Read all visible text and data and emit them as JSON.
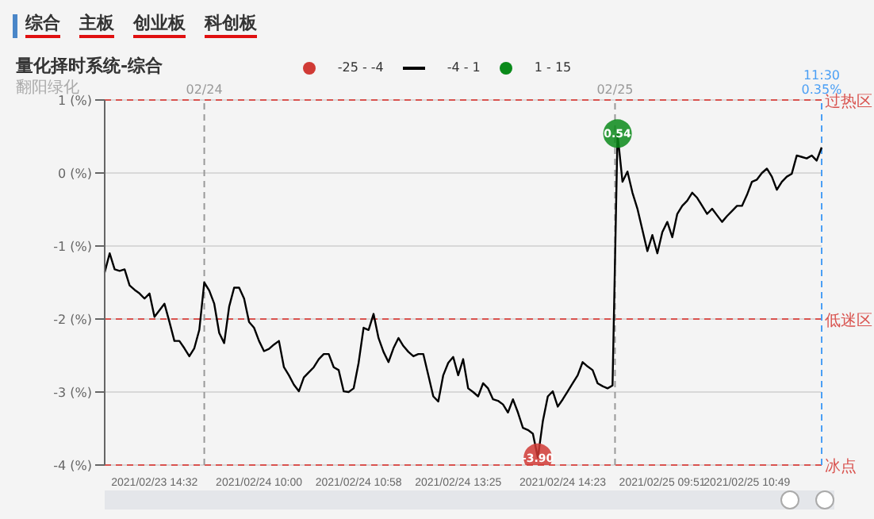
{
  "chart_data": {
    "type": "line",
    "title": "量化择时系统-综合",
    "subtitle": "翻阳绿化",
    "annotations": [
      "综合",
      "主板",
      "创业板",
      "科创板",
      "02/24",
      "02/25",
      "11:30 0.35%"
    ],
    "categories": [
      null,
      null,
      null,
      null,
      null,
      null,
      null,
      null,
      null,
      null,
      "2021/02/23 14:32",
      null,
      null,
      null,
      null,
      null,
      null,
      null,
      null,
      null,
      null,
      null,
      null,
      null,
      null,
      null,
      null,
      null,
      null,
      null,
      null,
      "2021/02/24 10:00",
      null,
      null,
      null,
      null,
      null,
      null,
      null,
      null,
      null,
      null,
      null,
      null,
      null,
      null,
      null,
      null,
      null,
      null,
      null,
      "2021/02/24 10:58",
      null,
      null,
      null,
      null,
      null,
      null,
      null,
      null,
      null,
      null,
      null,
      null,
      null,
      null,
      null,
      null,
      null,
      null,
      null,
      "2021/02/24 13:25",
      null,
      null,
      null,
      null,
      null,
      null,
      null,
      null,
      null,
      null,
      null,
      null,
      null,
      null,
      null,
      null,
      null,
      null,
      null,
      null,
      "2021/02/24 14:23",
      null,
      null,
      null,
      null,
      null,
      null,
      null,
      null,
      null,
      null,
      null,
      null,
      null,
      null,
      null,
      null,
      null,
      null,
      null,
      "2021/02/25 09:51",
      null,
      null,
      null,
      null,
      null,
      null,
      null,
      null,
      null,
      null,
      null,
      null,
      null,
      null,
      null,
      null,
      "2021/02/25 10:49",
      null,
      null,
      null,
      null,
      null,
      null,
      null,
      null,
      null,
      null,
      null,
      null,
      null,
      null,
      null
    ],
    "series": [
      {
        "name": "-25 - -4",
        "type": "scatter",
        "marker": "circle",
        "color": "#d03a35",
        "values": [
          null,
          null,
          null,
          null,
          null,
          null,
          null,
          null,
          null,
          null,
          null,
          null,
          null,
          null,
          null,
          null,
          null,
          null,
          null,
          null,
          null,
          null,
          null,
          null,
          null,
          null,
          null,
          null,
          null,
          null,
          null,
          null,
          null,
          null,
          null,
          null,
          null,
          null,
          null,
          null,
          null,
          null,
          null,
          null,
          null,
          null,
          null,
          null,
          null,
          null,
          null,
          null,
          null,
          null,
          null,
          null,
          null,
          null,
          null,
          null,
          null,
          null,
          null,
          null,
          null,
          null,
          null,
          null,
          null,
          null,
          null,
          null,
          null,
          null,
          null,
          null,
          null,
          null,
          null,
          null,
          null,
          null,
          null,
          null,
          null,
          null,
          null,
          -3.9,
          null,
          null,
          null,
          null,
          null,
          null,
          null,
          null,
          null,
          null,
          null,
          null,
          null,
          null,
          null,
          null,
          null,
          null,
          null,
          null,
          null,
          null,
          null,
          null,
          null,
          null,
          null,
          null,
          null,
          null,
          null,
          null,
          null,
          null,
          null,
          null,
          null,
          null,
          null,
          null,
          null,
          null,
          null,
          null,
          null,
          null,
          null,
          null,
          null,
          null,
          null,
          null,
          null,
          null,
          null,
          null,
          null
        ],
        "value_labels": [
          null,
          null,
          null,
          null,
          null,
          null,
          null,
          null,
          null,
          null,
          null,
          null,
          null,
          null,
          null,
          null,
          null,
          null,
          null,
          null,
          null,
          null,
          null,
          null,
          null,
          null,
          null,
          null,
          null,
          null,
          null,
          null,
          null,
          null,
          null,
          null,
          null,
          null,
          null,
          null,
          null,
          null,
          null,
          null,
          null,
          null,
          null,
          null,
          null,
          null,
          null,
          null,
          null,
          null,
          null,
          null,
          null,
          null,
          null,
          null,
          null,
          null,
          null,
          null,
          null,
          null,
          null,
          null,
          null,
          null,
          null,
          null,
          null,
          null,
          null,
          null,
          null,
          null,
          null,
          null,
          null,
          null,
          null,
          null,
          null,
          null,
          null,
          "-3.90",
          null,
          null,
          null,
          null,
          null,
          null,
          null,
          null,
          null,
          null,
          null,
          null,
          null,
          null,
          null,
          null,
          null,
          null,
          null,
          null,
          null,
          null,
          null,
          null,
          null,
          null,
          null,
          null,
          null,
          null,
          null,
          null,
          null,
          null,
          null,
          null,
          null,
          null,
          null,
          null,
          null,
          null,
          null,
          null,
          null,
          null,
          null,
          null,
          null,
          null,
          null,
          null,
          null,
          null,
          null,
          null,
          null
        ]
      },
      {
        "name": "-4 - 1",
        "color": "#000000",
        "values": [
          -1.36,
          -1.1,
          -1.32,
          -1.34,
          -1.32,
          -1.54,
          -1.6,
          -1.65,
          -1.72,
          -1.65,
          -1.97,
          -1.88,
          -1.79,
          -2.04,
          -2.3,
          -2.3,
          -2.4,
          -2.51,
          -2.4,
          -2.15,
          -1.5,
          -1.61,
          -1.79,
          -2.19,
          -2.33,
          -1.83,
          -1.57,
          -1.57,
          -1.72,
          -2.04,
          -2.12,
          -2.3,
          -2.44,
          -2.41,
          -2.35,
          -2.3,
          -2.66,
          -2.77,
          -2.9,
          -2.99,
          -2.8,
          -2.73,
          -2.66,
          -2.55,
          -2.48,
          -2.48,
          -2.66,
          -2.7,
          -2.99,
          -3.0,
          -2.95,
          -2.6,
          -2.12,
          -2.15,
          -1.93,
          -2.26,
          -2.45,
          -2.59,
          -2.4,
          -2.26,
          -2.37,
          -2.45,
          -2.51,
          -2.48,
          -2.48,
          -2.77,
          -3.06,
          -3.13,
          -2.77,
          -2.6,
          -2.52,
          -2.77,
          -2.55,
          -2.95,
          -3.0,
          -3.06,
          -2.88,
          -2.95,
          -3.1,
          -3.12,
          -3.17,
          -3.28,
          -3.1,
          -3.28,
          -3.49,
          -3.52,
          -3.57,
          -3.9,
          -3.4,
          -3.06,
          -2.99,
          -3.2,
          -3.1,
          -2.99,
          -2.88,
          -2.77,
          -2.59,
          -2.65,
          -2.7,
          -2.88,
          -2.92,
          -2.95,
          -2.91,
          0.54,
          -0.12,
          0.02,
          -0.27,
          -0.49,
          -0.78,
          -1.07,
          -0.85,
          -1.1,
          -0.81,
          -0.67,
          -0.88,
          -0.56,
          -0.45,
          -0.38,
          -0.27,
          -0.34,
          -0.45,
          -0.56,
          -0.49,
          -0.58,
          -0.67,
          -0.59,
          -0.52,
          -0.45,
          -0.45,
          -0.3,
          -0.12,
          -0.09,
          0.0,
          0.06,
          -0.05,
          -0.23,
          -0.12,
          -0.05,
          -0.01,
          0.24,
          0.22,
          0.2,
          0.24,
          0.17,
          0.35
        ]
      },
      {
        "name": "1 - 15",
        "type": "scatter",
        "marker": "circle",
        "color": "#0a8a1a",
        "values": [
          null,
          null,
          null,
          null,
          null,
          null,
          null,
          null,
          null,
          null,
          null,
          null,
          null,
          null,
          null,
          null,
          null,
          null,
          null,
          null,
          null,
          null,
          null,
          null,
          null,
          null,
          null,
          null,
          null,
          null,
          null,
          null,
          null,
          null,
          null,
          null,
          null,
          null,
          null,
          null,
          null,
          null,
          null,
          null,
          null,
          null,
          null,
          null,
          null,
          null,
          null,
          null,
          null,
          null,
          null,
          null,
          null,
          null,
          null,
          null,
          null,
          null,
          null,
          null,
          null,
          null,
          null,
          null,
          null,
          null,
          null,
          null,
          null,
          null,
          null,
          null,
          null,
          null,
          null,
          null,
          null,
          null,
          null,
          null,
          null,
          null,
          null,
          null,
          null,
          null,
          null,
          null,
          null,
          null,
          null,
          null,
          null,
          null,
          null,
          null,
          null,
          null,
          null,
          0.54,
          null,
          null,
          null,
          null,
          null,
          null,
          null,
          null,
          null,
          null,
          null,
          null,
          null,
          null,
          null,
          null,
          null,
          null,
          null,
          null,
          null,
          null,
          null,
          null,
          null,
          null,
          null,
          null,
          null,
          null,
          null,
          null,
          null,
          null,
          null,
          null,
          null,
          null,
          null,
          null,
          null
        ],
        "value_labels": [
          null,
          null,
          null,
          null,
          null,
          null,
          null,
          null,
          null,
          null,
          null,
          null,
          null,
          null,
          null,
          null,
          null,
          null,
          null,
          null,
          null,
          null,
          null,
          null,
          null,
          null,
          null,
          null,
          null,
          null,
          null,
          null,
          null,
          null,
          null,
          null,
          null,
          null,
          null,
          null,
          null,
          null,
          null,
          null,
          null,
          null,
          null,
          null,
          null,
          null,
          null,
          null,
          null,
          null,
          null,
          null,
          null,
          null,
          null,
          null,
          null,
          null,
          null,
          null,
          null,
          null,
          null,
          null,
          null,
          null,
          null,
          null,
          null,
          null,
          null,
          null,
          null,
          null,
          null,
          null,
          null,
          null,
          null,
          null,
          null,
          null,
          null,
          null,
          null,
          null,
          null,
          null,
          null,
          null,
          null,
          null,
          null,
          null,
          null,
          null,
          null,
          null,
          null,
          "0.54",
          null,
          null,
          null,
          null,
          null,
          null,
          null,
          null,
          null,
          null,
          null,
          null,
          null,
          null,
          null,
          null,
          null,
          null,
          null,
          null,
          null,
          null,
          null,
          null,
          null,
          null,
          null,
          null,
          null,
          null,
          null,
          null,
          null,
          null,
          null,
          null,
          null,
          null,
          null,
          null,
          null
        ]
      }
    ],
    "ylim": [
      -4,
      1
    ],
    "yticks": [
      {
        "value": -4,
        "label": "-4 (%)"
      },
      {
        "value": -3,
        "label": "-3 (%)"
      },
      {
        "value": -2,
        "label": "-2 (%)"
      },
      {
        "value": -1,
        "label": "-1 (%)"
      },
      {
        "value": 0,
        "label": "0 (%)"
      },
      {
        "value": 1,
        "label": "1 (%)"
      }
    ],
    "ref_lines": [
      {
        "axis": "y",
        "value": 1,
        "label": "过热区",
        "color": "#d9534f",
        "line_style": "dashed"
      },
      {
        "axis": "y",
        "value": -2,
        "label": "低迷区",
        "color": "#d9534f",
        "line_style": "dashed"
      },
      {
        "axis": "y",
        "value": -4,
        "label": "冰点",
        "color": "#d9534f",
        "line_style": "dashed"
      }
    ],
    "grid": "y",
    "legend": "top",
    "marker": "none",
    "line_style": "solid"
  }
}
